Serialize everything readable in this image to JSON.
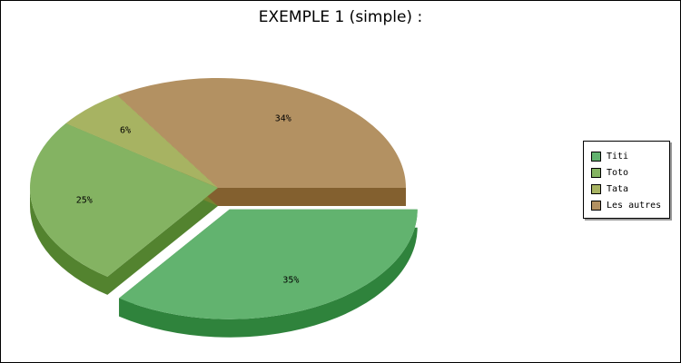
{
  "chart_data": {
    "type": "pie",
    "title": "EXEMPLE 1 (simple) :",
    "three_d": true,
    "exploded_slice": "Titi",
    "legend_position": "right",
    "slices": [
      {
        "name": "Titi",
        "value": 35,
        "label": "35%",
        "color": "#62b36f",
        "side_color": "#2f833c"
      },
      {
        "name": "Toto",
        "value": 25,
        "label": "25%",
        "color": "#84b362",
        "side_color": "#53832f"
      },
      {
        "name": "Tata",
        "value": 6,
        "label": "6%",
        "color": "#a7b362",
        "side_color": "#76832f"
      },
      {
        "name": "Les autres",
        "value": 34,
        "label": "34%",
        "color": "#b39162",
        "side_color": "#83602f"
      }
    ]
  }
}
